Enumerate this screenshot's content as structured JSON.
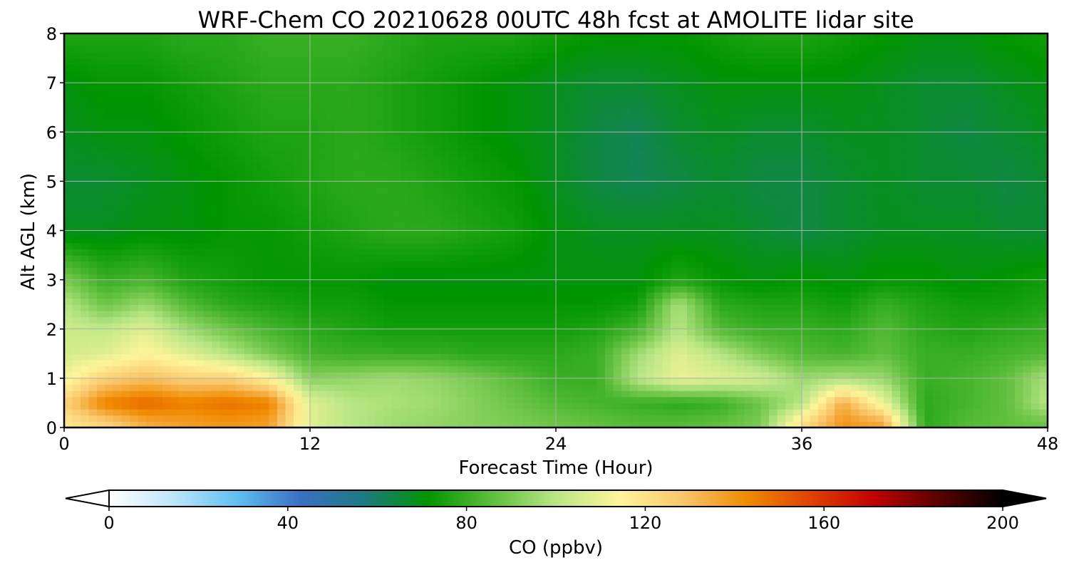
{
  "chart_data": {
    "type": "heatmap",
    "title": "WRF-Chem CO  20210628 00UTC 48h fcst at AMOLITE lidar site",
    "xlabel": "Forecast Time (Hour)",
    "ylabel": "Alt AGL (km)",
    "xlim": [
      0,
      48
    ],
    "ylim": [
      0,
      8
    ],
    "xticks": [
      "0",
      "12",
      "24",
      "36",
      "48"
    ],
    "yticks": [
      "0",
      "1",
      "2",
      "3",
      "4",
      "5",
      "6",
      "7",
      "8"
    ],
    "grid": true,
    "x": [
      0,
      2,
      4,
      6,
      8,
      10,
      12,
      14,
      16,
      18,
      20,
      22,
      24,
      26,
      28,
      30,
      32,
      34,
      36,
      38,
      40,
      42,
      44,
      46,
      48
    ],
    "y": [
      0.1,
      0.5,
      1.0,
      1.5,
      2.0,
      2.5,
      3.0,
      4.0,
      5.0,
      6.0,
      7.0,
      8.0
    ],
    "z": [
      [
        118,
        125,
        135,
        138,
        140,
        138,
        108,
        100,
        96,
        94,
        92,
        90,
        88,
        86,
        84,
        84,
        86,
        90,
        120,
        140,
        135,
        78,
        84,
        86,
        88
      ],
      [
        125,
        145,
        150,
        145,
        148,
        145,
        108,
        100,
        98,
        96,
        92,
        88,
        84,
        82,
        80,
        78,
        80,
        88,
        100,
        135,
        110,
        78,
        82,
        86,
        100
      ],
      [
        112,
        125,
        130,
        125,
        125,
        115,
        92,
        94,
        96,
        94,
        90,
        85,
        80,
        80,
        100,
        110,
        108,
        105,
        95,
        98,
        95,
        80,
        82,
        86,
        98
      ],
      [
        105,
        108,
        115,
        108,
        100,
        90,
        82,
        80,
        80,
        80,
        78,
        78,
        78,
        80,
        96,
        108,
        100,
        90,
        84,
        82,
        86,
        80,
        80,
        82,
        84
      ],
      [
        104,
        102,
        108,
        96,
        88,
        82,
        78,
        76,
        74,
        74,
        74,
        74,
        74,
        76,
        82,
        100,
        84,
        80,
        80,
        78,
        84,
        78,
        76,
        78,
        80
      ],
      [
        100,
        88,
        95,
        84,
        78,
        76,
        74,
        74,
        72,
        72,
        72,
        72,
        72,
        72,
        74,
        98,
        78,
        76,
        76,
        74,
        80,
        76,
        74,
        74,
        76
      ],
      [
        90,
        80,
        82,
        76,
        74,
        72,
        72,
        72,
        70,
        70,
        70,
        70,
        70,
        70,
        70,
        76,
        72,
        70,
        72,
        70,
        72,
        72,
        70,
        72,
        74
      ],
      [
        68,
        68,
        70,
        70,
        72,
        72,
        74,
        76,
        78,
        78,
        76,
        74,
        70,
        68,
        68,
        68,
        68,
        66,
        64,
        66,
        68,
        68,
        68,
        66,
        66
      ],
      [
        66,
        66,
        68,
        70,
        72,
        74,
        76,
        78,
        78,
        76,
        74,
        72,
        68,
        64,
        62,
        64,
        66,
        64,
        64,
        66,
        68,
        66,
        66,
        64,
        66
      ],
      [
        68,
        70,
        70,
        72,
        74,
        76,
        76,
        78,
        76,
        74,
        72,
        70,
        68,
        64,
        62,
        66,
        68,
        66,
        66,
        68,
        68,
        66,
        64,
        66,
        68
      ],
      [
        70,
        72,
        72,
        74,
        76,
        78,
        78,
        78,
        76,
        74,
        72,
        70,
        68,
        66,
        66,
        68,
        70,
        70,
        70,
        70,
        68,
        66,
        66,
        68,
        70
      ],
      [
        76,
        76,
        76,
        78,
        78,
        80,
        80,
        80,
        78,
        76,
        76,
        76,
        74,
        72,
        72,
        72,
        74,
        76,
        76,
        74,
        72,
        70,
        70,
        72,
        74
      ]
    ],
    "colorbar": {
      "label": "CO  (ppbv)",
      "min": 0,
      "max": 200,
      "ticks": [
        "0",
        "40",
        "80",
        "120",
        "160",
        "200"
      ],
      "extend": "both",
      "colors": [
        "#ffffff",
        "#bfe5fa",
        "#5fbff0",
        "#3a6fc4",
        "#1d7a80",
        "#009600",
        "#5ebf3c",
        "#b9e685",
        "#fff59a",
        "#f9c56a",
        "#f08a00",
        "#e04000",
        "#c00000",
        "#5a0000",
        "#000000"
      ]
    }
  }
}
